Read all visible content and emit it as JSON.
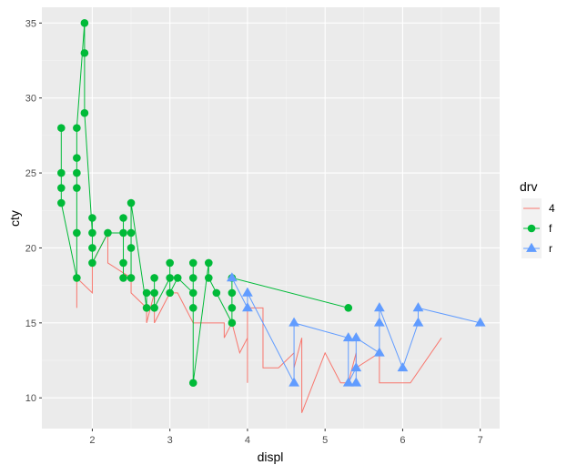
{
  "chart_data": {
    "type": "line",
    "xlabel": "displ",
    "ylabel": "cty",
    "xlim": [
      1.35,
      7.25
    ],
    "ylim": [
      7.95,
      36.05
    ],
    "x_ticks": [
      2,
      3,
      4,
      5,
      6,
      7
    ],
    "y_ticks": [
      10,
      15,
      20,
      25,
      30,
      35
    ],
    "x_tick_labels": [
      "2",
      "3",
      "4",
      "5",
      "6",
      "7"
    ],
    "y_tick_labels": [
      "10",
      "15",
      "20",
      "25",
      "30",
      "35"
    ],
    "grid": true,
    "legend": {
      "title": "drv",
      "position": "right"
    },
    "series": [
      {
        "name": "4",
        "color": "#F8766D",
        "marker": "none",
        "points": [
          [
            1.8,
            16
          ],
          [
            1.8,
            18
          ],
          [
            2.0,
            17
          ],
          [
            2.0,
            19
          ],
          [
            2.2,
            21
          ],
          [
            2.2,
            19
          ],
          [
            2.5,
            18
          ],
          [
            2.5,
            17
          ],
          [
            2.7,
            16
          ],
          [
            2.7,
            15
          ],
          [
            2.8,
            17
          ],
          [
            2.8,
            15
          ],
          [
            3.0,
            17
          ],
          [
            3.0,
            17
          ],
          [
            3.1,
            17
          ],
          [
            3.3,
            15
          ],
          [
            3.3,
            15
          ],
          [
            3.7,
            15
          ],
          [
            3.7,
            14
          ],
          [
            3.8,
            15
          ],
          [
            3.9,
            13
          ],
          [
            4.0,
            14
          ],
          [
            4.0,
            11
          ],
          [
            4.0,
            16
          ],
          [
            4.2,
            16
          ],
          [
            4.2,
            12
          ],
          [
            4.4,
            12
          ],
          [
            4.6,
            13
          ],
          [
            4.6,
            12
          ],
          [
            4.7,
            14
          ],
          [
            4.7,
            9
          ],
          [
            5.0,
            13
          ],
          [
            5.2,
            11
          ],
          [
            5.3,
            11
          ],
          [
            5.4,
            13
          ],
          [
            5.4,
            12
          ],
          [
            5.7,
            13
          ],
          [
            5.7,
            11
          ],
          [
            5.9,
            11
          ],
          [
            6.1,
            11
          ],
          [
            6.5,
            14
          ]
        ]
      },
      {
        "name": "f",
        "color": "#00BA38",
        "marker": "circle",
        "points": [
          [
            1.6,
            28
          ],
          [
            1.6,
            25
          ],
          [
            1.6,
            24
          ],
          [
            1.6,
            23
          ],
          [
            1.8,
            18
          ],
          [
            1.8,
            21
          ],
          [
            1.8,
            24
          ],
          [
            1.8,
            25
          ],
          [
            1.8,
            26
          ],
          [
            1.8,
            28
          ],
          [
            1.9,
            35
          ],
          [
            1.9,
            33
          ],
          [
            1.9,
            29
          ],
          [
            2.0,
            21
          ],
          [
            2.0,
            22
          ],
          [
            2.0,
            20
          ],
          [
            2.0,
            19
          ],
          [
            2.2,
            21
          ],
          [
            2.4,
            21
          ],
          [
            2.4,
            22
          ],
          [
            2.4,
            19
          ],
          [
            2.4,
            18
          ],
          [
            2.5,
            18
          ],
          [
            2.5,
            20
          ],
          [
            2.5,
            21
          ],
          [
            2.5,
            23
          ],
          [
            2.7,
            16
          ],
          [
            2.7,
            17
          ],
          [
            2.8,
            17
          ],
          [
            2.8,
            18
          ],
          [
            2.8,
            16
          ],
          [
            3.0,
            18
          ],
          [
            3.0,
            19
          ],
          [
            3.0,
            17
          ],
          [
            3.1,
            18
          ],
          [
            3.3,
            17
          ],
          [
            3.3,
            18
          ],
          [
            3.3,
            19
          ],
          [
            3.3,
            16
          ],
          [
            3.3,
            11
          ],
          [
            3.5,
            19
          ],
          [
            3.5,
            18
          ],
          [
            3.6,
            17
          ],
          [
            3.8,
            15
          ],
          [
            3.8,
            16
          ],
          [
            3.8,
            17
          ],
          [
            3.8,
            18
          ],
          [
            5.3,
            16
          ]
        ]
      },
      {
        "name": "r",
        "color": "#619CFF",
        "marker": "triangle",
        "points": [
          [
            3.8,
            18
          ],
          [
            4.0,
            16
          ],
          [
            4.0,
            17
          ],
          [
            4.6,
            11
          ],
          [
            4.6,
            15
          ],
          [
            5.3,
            14
          ],
          [
            5.3,
            11
          ],
          [
            5.4,
            12
          ],
          [
            5.4,
            11
          ],
          [
            5.4,
            14
          ],
          [
            5.7,
            13
          ],
          [
            5.7,
            15
          ],
          [
            5.7,
            16
          ],
          [
            6.0,
            12
          ],
          [
            6.2,
            15
          ],
          [
            6.2,
            16
          ],
          [
            7.0,
            15
          ]
        ]
      }
    ]
  }
}
